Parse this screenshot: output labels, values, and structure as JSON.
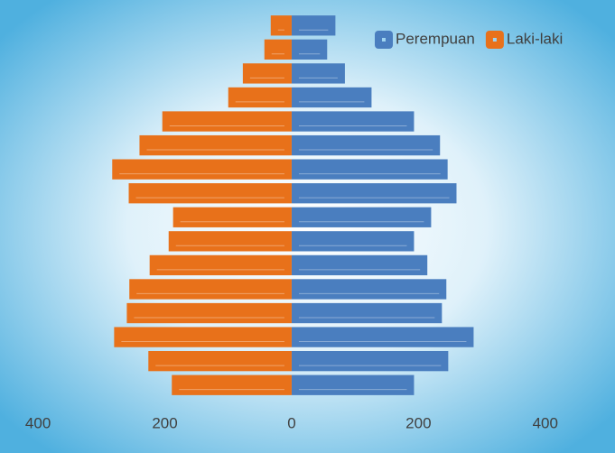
{
  "chart_data": {
    "type": "bar",
    "orientation": "horizontal",
    "categories": [
      null,
      null,
      null,
      null,
      null,
      null,
      null,
      null,
      null,
      null,
      null,
      null,
      null,
      null,
      null,
      null
    ],
    "series": [
      {
        "name": "Perempuan",
        "color": "#4a7ebf",
        "values": [
          69,
          56,
          84,
          126,
          193,
          234,
          246,
          260,
          220,
          193,
          214,
          244,
          237,
          287,
          247,
          193
        ]
      },
      {
        "name": "Laki-laki",
        "color": "#e8711a",
        "values": [
          -33,
          -43,
          -77,
          -100,
          -204,
          -240,
          -283,
          -257,
          -187,
          -194,
          -224,
          -256,
          -260,
          -280,
          -226,
          -189
        ]
      }
    ],
    "xlim": [
      -460,
      510
    ],
    "xticks": [
      {
        "value": -400,
        "label": "400"
      },
      {
        "value": -200,
        "label": "200"
      },
      0,
      200,
      400
    ],
    "grid": false,
    "legend": "top-right"
  }
}
